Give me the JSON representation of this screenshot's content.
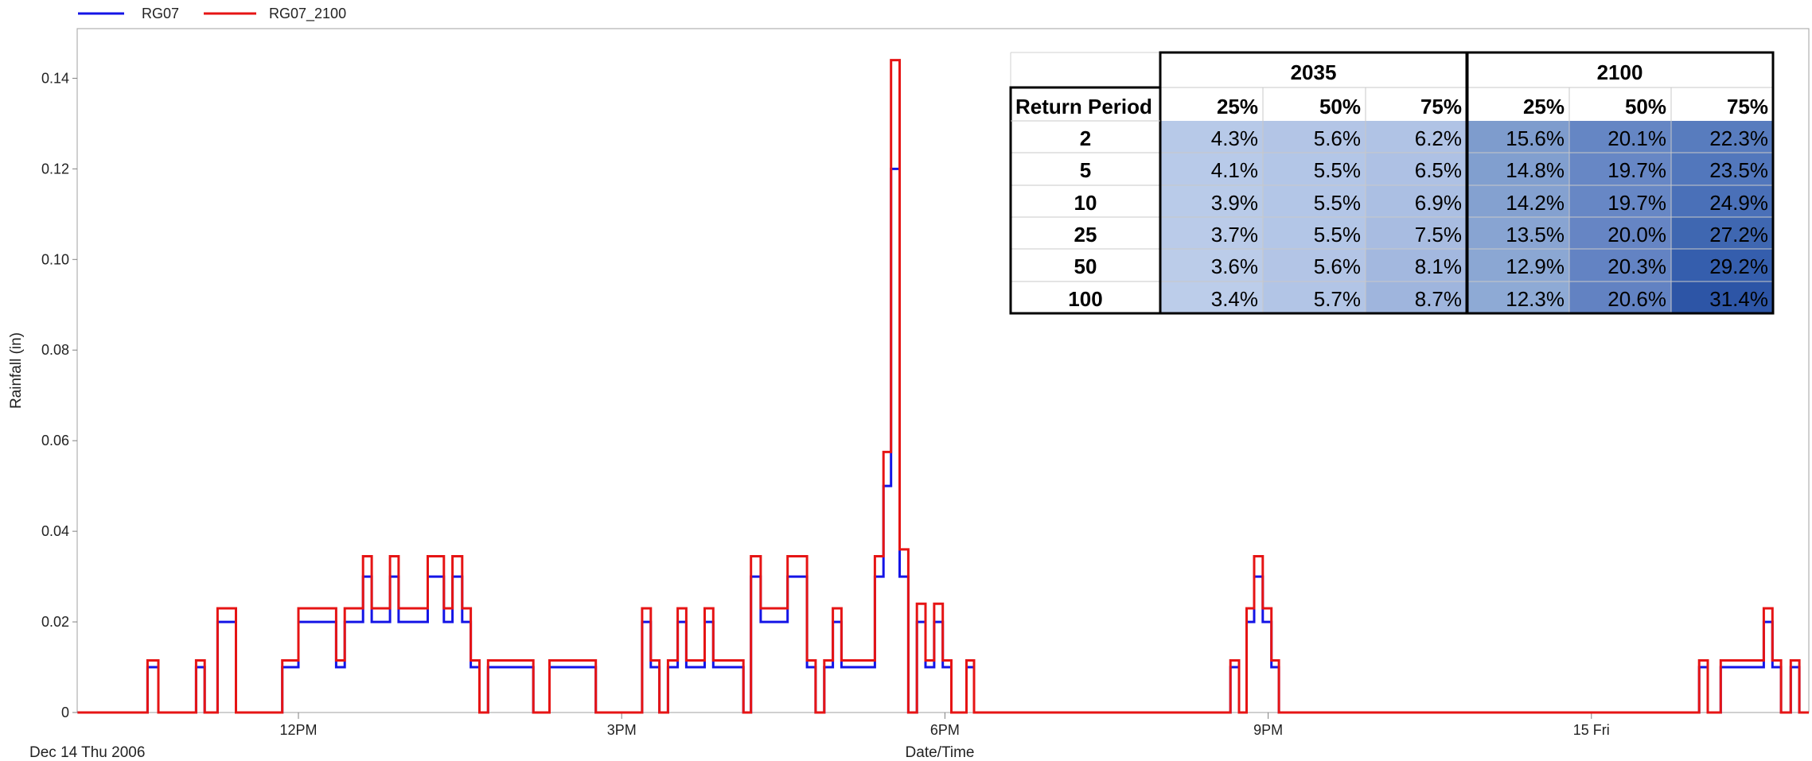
{
  "chart_data": {
    "type": "line",
    "step": true,
    "xlabel": "Date/Time",
    "ylabel": "Rainfall (in)",
    "x_start_label": "Dec 14 Thu 2006",
    "x_ticks": [
      {
        "label": "12PM",
        "hour": 12
      },
      {
        "label": "3PM",
        "hour": 15
      },
      {
        "label": "6PM",
        "hour": 18
      },
      {
        "label": "9PM",
        "hour": 21
      },
      {
        "label": "15 Fri",
        "hour": 24
      }
    ],
    "y_ticks": [
      "0",
      "0.02",
      "0.04",
      "0.06",
      "0.08",
      "0.10",
      "0.12",
      "0.14"
    ],
    "y_tick_values": [
      0,
      0.02,
      0.04,
      0.06,
      0.08,
      0.1,
      0.12,
      0.14
    ],
    "ylim": [
      0,
      0.15
    ],
    "xlim_hours": [
      9.95,
      25.95
    ],
    "legend_position": "top-left",
    "grid": false,
    "series": [
      {
        "name": "RG07",
        "color": "#1414e6",
        "points": [
          [
            9.95,
            0
          ],
          [
            10.6,
            0.01
          ],
          [
            10.7,
            0
          ],
          [
            11.05,
            0.01
          ],
          [
            11.13,
            0
          ],
          [
            11.25,
            0.02
          ],
          [
            11.42,
            0
          ],
          [
            11.85,
            0.01
          ],
          [
            12.0,
            0.02
          ],
          [
            12.35,
            0.01
          ],
          [
            12.43,
            0.02
          ],
          [
            12.6,
            0.03
          ],
          [
            12.68,
            0.02
          ],
          [
            12.85,
            0.03
          ],
          [
            12.93,
            0.02
          ],
          [
            13.2,
            0.03
          ],
          [
            13.35,
            0.02
          ],
          [
            13.43,
            0.03
          ],
          [
            13.52,
            0.02
          ],
          [
            13.6,
            0.01
          ],
          [
            13.68,
            0
          ],
          [
            13.76,
            0.01
          ],
          [
            14.18,
            0
          ],
          [
            14.33,
            0.01
          ],
          [
            14.76,
            0
          ],
          [
            15.19,
            0.02
          ],
          [
            15.27,
            0.01
          ],
          [
            15.35,
            0
          ],
          [
            15.43,
            0.01
          ],
          [
            15.52,
            0.02
          ],
          [
            15.6,
            0.01
          ],
          [
            15.77,
            0.02
          ],
          [
            15.85,
            0.01
          ],
          [
            16.13,
            0
          ],
          [
            16.2,
            0.03
          ],
          [
            16.29,
            0.02
          ],
          [
            16.54,
            0.03
          ],
          [
            16.72,
            0.01
          ],
          [
            16.8,
            0
          ],
          [
            16.88,
            0.01
          ],
          [
            16.96,
            0.02
          ],
          [
            17.04,
            0.01
          ],
          [
            17.35,
            0.03
          ],
          [
            17.43,
            0.05
          ],
          [
            17.5,
            0.12
          ],
          [
            17.58,
            0.03
          ],
          [
            17.66,
            0
          ],
          [
            17.74,
            0.02
          ],
          [
            17.82,
            0.01
          ],
          [
            17.9,
            0.02
          ],
          [
            17.98,
            0.01
          ],
          [
            18.06,
            0
          ],
          [
            18.2,
            0.01
          ],
          [
            18.27,
            0
          ],
          [
            20.65,
            0.01
          ],
          [
            20.73,
            0
          ],
          [
            20.8,
            0.02
          ],
          [
            20.87,
            0.03
          ],
          [
            20.95,
            0.02
          ],
          [
            21.03,
            0.01
          ],
          [
            21.1,
            0
          ],
          [
            25.0,
            0.01
          ],
          [
            25.08,
            0
          ],
          [
            25.2,
            0.01
          ],
          [
            25.6,
            0.02
          ],
          [
            25.68,
            0.01
          ],
          [
            25.76,
            0
          ],
          [
            25.85,
            0.01
          ],
          [
            25.93,
            0
          ]
        ]
      },
      {
        "name": "RG07_2100",
        "color": "#e61414",
        "points": [
          [
            9.95,
            0
          ],
          [
            10.6,
            0.0115
          ],
          [
            10.7,
            0
          ],
          [
            11.05,
            0.0115
          ],
          [
            11.13,
            0
          ],
          [
            11.25,
            0.023
          ],
          [
            11.42,
            0
          ],
          [
            11.85,
            0.0115
          ],
          [
            12.0,
            0.023
          ],
          [
            12.35,
            0.0115
          ],
          [
            12.43,
            0.023
          ],
          [
            12.6,
            0.0345
          ],
          [
            12.68,
            0.023
          ],
          [
            12.85,
            0.0345
          ],
          [
            12.93,
            0.023
          ],
          [
            13.2,
            0.0345
          ],
          [
            13.35,
            0.023
          ],
          [
            13.43,
            0.0345
          ],
          [
            13.52,
            0.023
          ],
          [
            13.6,
            0.0115
          ],
          [
            13.68,
            0
          ],
          [
            13.76,
            0.0115
          ],
          [
            14.18,
            0
          ],
          [
            14.33,
            0.0115
          ],
          [
            14.76,
            0
          ],
          [
            15.19,
            0.023
          ],
          [
            15.27,
            0.0115
          ],
          [
            15.35,
            0
          ],
          [
            15.43,
            0.0115
          ],
          [
            15.52,
            0.023
          ],
          [
            15.6,
            0.0115
          ],
          [
            15.77,
            0.023
          ],
          [
            15.85,
            0.0115
          ],
          [
            16.13,
            0
          ],
          [
            16.2,
            0.0345
          ],
          [
            16.29,
            0.023
          ],
          [
            16.54,
            0.0345
          ],
          [
            16.72,
            0.0115
          ],
          [
            16.8,
            0
          ],
          [
            16.88,
            0.0115
          ],
          [
            16.96,
            0.023
          ],
          [
            17.04,
            0.0115
          ],
          [
            17.35,
            0.0345
          ],
          [
            17.43,
            0.0575
          ],
          [
            17.5,
            0.144
          ],
          [
            17.58,
            0.036
          ],
          [
            17.66,
            0
          ],
          [
            17.74,
            0.024
          ],
          [
            17.82,
            0.0115
          ],
          [
            17.9,
            0.024
          ],
          [
            17.98,
            0.0115
          ],
          [
            18.06,
            0
          ],
          [
            18.2,
            0.0115
          ],
          [
            18.27,
            0
          ],
          [
            20.65,
            0.0115
          ],
          [
            20.73,
            0
          ],
          [
            20.8,
            0.023
          ],
          [
            20.87,
            0.0345
          ],
          [
            20.95,
            0.023
          ],
          [
            21.03,
            0.0115
          ],
          [
            21.1,
            0
          ],
          [
            25.0,
            0.0115
          ],
          [
            25.08,
            0
          ],
          [
            25.2,
            0.0115
          ],
          [
            25.6,
            0.023
          ],
          [
            25.68,
            0.0115
          ],
          [
            25.76,
            0
          ],
          [
            25.85,
            0.0115
          ],
          [
            25.93,
            0
          ]
        ]
      }
    ]
  },
  "inset_table": {
    "row_header": "Return Period",
    "groups": [
      {
        "label": "2035",
        "cols": [
          "25%",
          "50%",
          "75%"
        ]
      },
      {
        "label": "2100",
        "cols": [
          "25%",
          "50%",
          "75%"
        ]
      }
    ],
    "rows": [
      {
        "period": "2",
        "values": [
          "4.3%",
          "5.6%",
          "6.2%",
          "15.6%",
          "20.1%",
          "22.3%"
        ]
      },
      {
        "period": "5",
        "values": [
          "4.1%",
          "5.5%",
          "6.5%",
          "14.8%",
          "19.7%",
          "23.5%"
        ]
      },
      {
        "period": "10",
        "values": [
          "3.9%",
          "5.5%",
          "6.9%",
          "14.2%",
          "19.7%",
          "24.9%"
        ]
      },
      {
        "period": "25",
        "values": [
          "3.7%",
          "5.5%",
          "7.5%",
          "13.5%",
          "20.0%",
          "27.2%"
        ]
      },
      {
        "period": "50",
        "values": [
          "3.6%",
          "5.6%",
          "8.1%",
          "12.9%",
          "20.3%",
          "29.2%"
        ]
      },
      {
        "period": "100",
        "values": [
          "3.4%",
          "5.7%",
          "8.7%",
          "12.3%",
          "20.6%",
          "31.4%"
        ]
      }
    ],
    "cell_colors": [
      [
        "#b7c9e8",
        "#b3c5e6",
        "#b0c3e5",
        "#7e9ccd",
        "#6586c4",
        "#587cbe"
      ],
      [
        "#b8cae9",
        "#b3c6e7",
        "#aec1e4",
        "#819fcf",
        "#6787c5",
        "#5277bc"
      ],
      [
        "#b9cbe9",
        "#b3c6e7",
        "#abbfe3",
        "#84a1d0",
        "#6787c5",
        "#4a70b8"
      ],
      [
        "#bacbe9",
        "#b3c6e7",
        "#a8bce1",
        "#88a4d2",
        "#6685c4",
        "#3f67b1"
      ],
      [
        "#bbcce9",
        "#b3c5e6",
        "#a3b8df",
        "#8ba7d3",
        "#6383c3",
        "#355ead"
      ],
      [
        "#bccdea",
        "#b2c5e6",
        "#9fb5dd",
        "#8eaad5",
        "#6282c2",
        "#2d55a6"
      ]
    ]
  }
}
